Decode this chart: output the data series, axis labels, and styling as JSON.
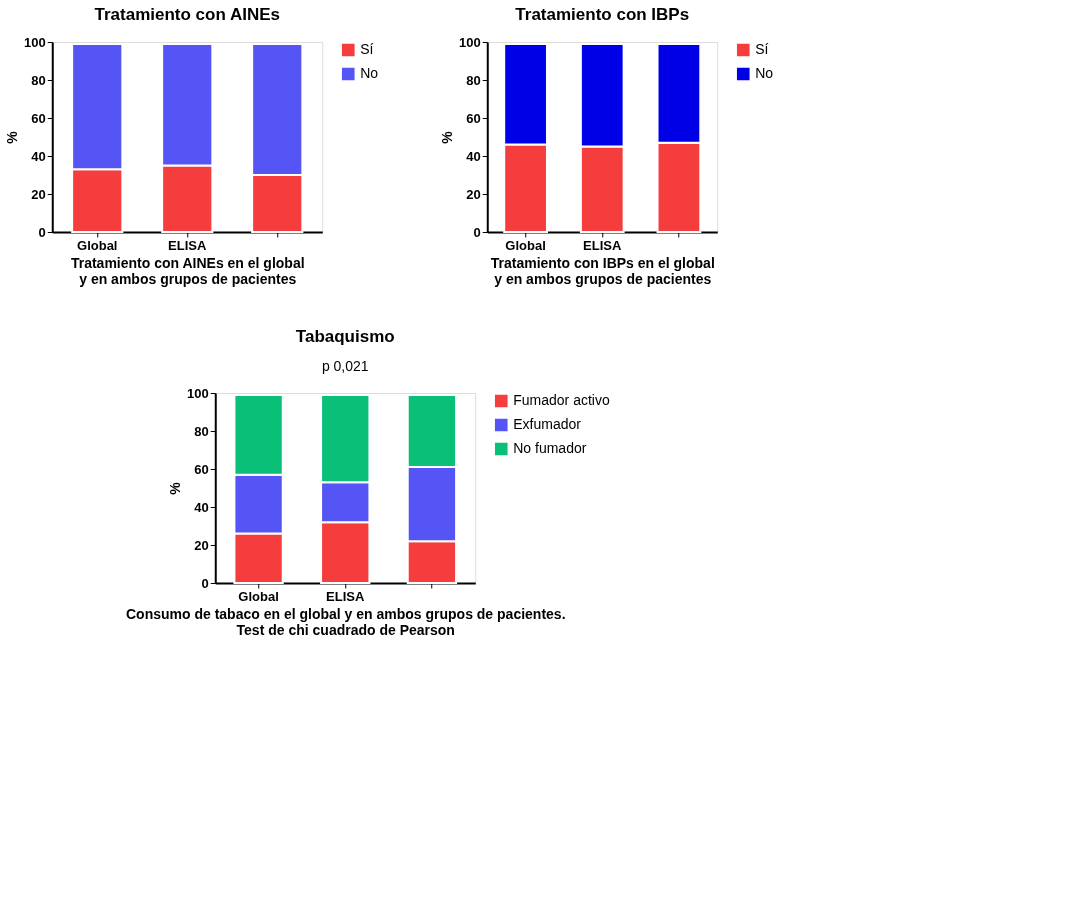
{
  "chart_data": [
    {
      "type": "bar",
      "stacked": true,
      "title": "Tratamiento con AINEs",
      "xlabel": "Tratamiento con AINEs en el global\ny en ambos grupos de pacientes",
      "ylabel": "%",
      "categories": [
        "Global",
        "ELISA",
        null
      ],
      "ylim": [
        0,
        100
      ],
      "yticks": [
        0,
        20,
        40,
        60,
        80,
        100
      ],
      "legend": "top right",
      "series": [
        {
          "name": "Sí",
          "color": "#f53d3d",
          "values": [
            33,
            35,
            30
          ]
        },
        {
          "name": "No",
          "color": "#5555f5",
          "values": [
            66,
            64,
            69
          ]
        }
      ]
    },
    {
      "type": "bar",
      "stacked": true,
      "title": "Tratamiento con IBPs",
      "xlabel": "Tratamiento con IBPs en el global\ny en ambos grupos de pacientes",
      "ylabel": "%",
      "categories": [
        "Global",
        "ELISA",
        null
      ],
      "ylim": [
        0,
        100
      ],
      "yticks": [
        0,
        20,
        40,
        60,
        80,
        100
      ],
      "legend": "top right",
      "series": [
        {
          "name": "Sí",
          "color": "#f53d3d",
          "values": [
            46,
            45,
            47
          ]
        },
        {
          "name": "No",
          "color": "#0000e6",
          "values": [
            53,
            54,
            52
          ]
        }
      ]
    },
    {
      "type": "bar",
      "stacked": true,
      "title": "Tabaquismo",
      "xlabel": "Consumo de tabaco en el global y en ambos grupos de pacientes.\nTest de chi cuadrado de Pearson",
      "ylabel": "%",
      "annotations": [
        "p 0,021"
      ],
      "categories": [
        "Global",
        "ELISA",
        null
      ],
      "ylim": [
        0,
        100
      ],
      "yticks": [
        0,
        20,
        40,
        60,
        80,
        100
      ],
      "legend": "top right",
      "series": [
        {
          "name": "Fumador activo",
          "color": "#f53d3d",
          "values": [
            26,
            32,
            22
          ]
        },
        {
          "name": "Exfumador",
          "color": "#5555f5",
          "values": [
            31,
            21,
            39
          ]
        },
        {
          "name": "No fumador",
          "color": "#0abf78",
          "values": [
            42,
            46,
            38
          ]
        }
      ]
    }
  ]
}
